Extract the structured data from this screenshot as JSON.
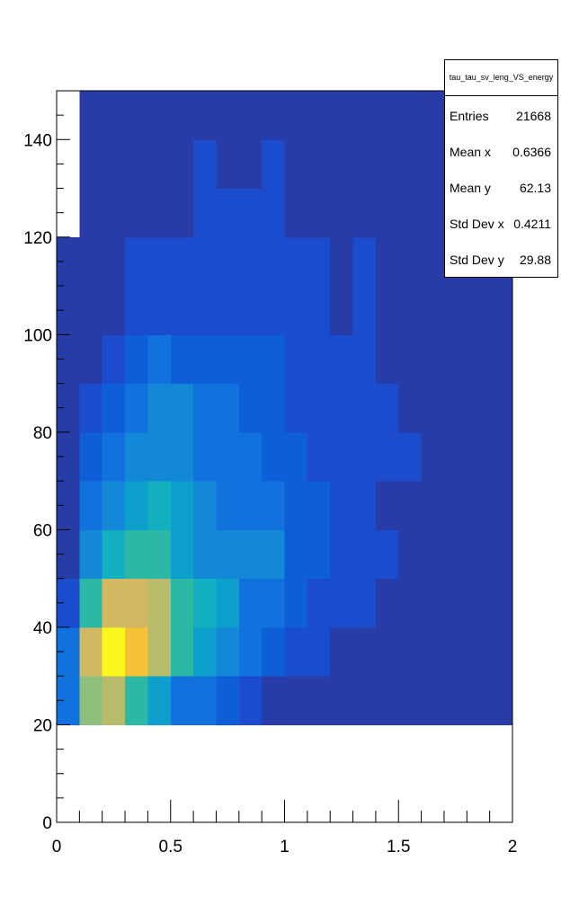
{
  "chart_data": {
    "type": "heatmap",
    "title": "",
    "xlabel": "",
    "ylabel": "",
    "xlim": [
      0,
      2
    ],
    "ylim": [
      0,
      150
    ],
    "x_bin_width": 0.1,
    "y_bin_width": 10,
    "x_ticks": [
      "0",
      "0.5",
      "1",
      "1.5",
      "2"
    ],
    "y_ticks": [
      "0",
      "20",
      "40",
      "60",
      "80",
      "100",
      "120",
      "140"
    ],
    "palette": [
      "#283ca8",
      "#1a4ccd",
      "#0e5ed8",
      "#1172de",
      "#1288d6",
      "#0ea0cc",
      "#12b0c0",
      "#2cb8a4",
      "#8ebf7c",
      "#b8bb6c",
      "#d2b862",
      "#f5c136",
      "#faf81a"
    ],
    "cells": [
      {
        "x": 0.0,
        "y": 20,
        "level": 3
      },
      {
        "x": 0.1,
        "y": 20,
        "level": 8
      },
      {
        "x": 0.2,
        "y": 20,
        "level": 9
      },
      {
        "x": 0.3,
        "y": 20,
        "level": 7
      },
      {
        "x": 0.4,
        "y": 20,
        "level": 5
      },
      {
        "x": 0.5,
        "y": 20,
        "level": 3
      },
      {
        "x": 0.6,
        "y": 20,
        "level": 3
      },
      {
        "x": 0.7,
        "y": 20,
        "level": 2
      },
      {
        "x": 0.8,
        "y": 20,
        "level": 1
      },
      {
        "x": 0.9,
        "y": 20,
        "level": 0
      },
      {
        "x": 1.0,
        "y": 20,
        "level": 0
      },
      {
        "x": 1.1,
        "y": 20,
        "level": 0
      },
      {
        "x": 1.2,
        "y": 20,
        "level": 0
      },
      {
        "x": 1.3,
        "y": 20,
        "level": 0
      },
      {
        "x": 1.4,
        "y": 20,
        "level": 0
      },
      {
        "x": 1.5,
        "y": 20,
        "level": 0
      },
      {
        "x": 1.6,
        "y": 20,
        "level": 0
      },
      {
        "x": 1.7,
        "y": 20,
        "level": 0
      },
      {
        "x": 1.8,
        "y": 20,
        "level": 0
      },
      {
        "x": 1.9,
        "y": 20,
        "level": 0
      },
      {
        "x": 0.0,
        "y": 30,
        "level": 3
      },
      {
        "x": 0.1,
        "y": 30,
        "level": 10
      },
      {
        "x": 0.2,
        "y": 30,
        "level": 12
      },
      {
        "x": 0.3,
        "y": 30,
        "level": 11
      },
      {
        "x": 0.4,
        "y": 30,
        "level": 9
      },
      {
        "x": 0.5,
        "y": 30,
        "level": 7
      },
      {
        "x": 0.6,
        "y": 30,
        "level": 5
      },
      {
        "x": 0.7,
        "y": 30,
        "level": 4
      },
      {
        "x": 0.8,
        "y": 30,
        "level": 3
      },
      {
        "x": 0.9,
        "y": 30,
        "level": 2
      },
      {
        "x": 1.0,
        "y": 30,
        "level": 1
      },
      {
        "x": 1.1,
        "y": 30,
        "level": 1
      },
      {
        "x": 1.2,
        "y": 30,
        "level": 0
      },
      {
        "x": 1.3,
        "y": 30,
        "level": 0
      },
      {
        "x": 1.4,
        "y": 30,
        "level": 0
      },
      {
        "x": 1.5,
        "y": 30,
        "level": 0
      },
      {
        "x": 1.6,
        "y": 30,
        "level": 0
      },
      {
        "x": 1.7,
        "y": 30,
        "level": 0
      },
      {
        "x": 1.8,
        "y": 30,
        "level": 0
      },
      {
        "x": 1.9,
        "y": 30,
        "level": 0
      },
      {
        "x": 0.0,
        "y": 40,
        "level": 1
      },
      {
        "x": 0.1,
        "y": 40,
        "level": 7
      },
      {
        "x": 0.2,
        "y": 40,
        "level": 10
      },
      {
        "x": 0.3,
        "y": 40,
        "level": 10
      },
      {
        "x": 0.4,
        "y": 40,
        "level": 9
      },
      {
        "x": 0.5,
        "y": 40,
        "level": 7
      },
      {
        "x": 0.6,
        "y": 40,
        "level": 6
      },
      {
        "x": 0.7,
        "y": 40,
        "level": 5
      },
      {
        "x": 0.8,
        "y": 40,
        "level": 3
      },
      {
        "x": 0.9,
        "y": 40,
        "level": 3
      },
      {
        "x": 1.0,
        "y": 40,
        "level": 2
      },
      {
        "x": 1.1,
        "y": 40,
        "level": 1
      },
      {
        "x": 1.2,
        "y": 40,
        "level": 1
      },
      {
        "x": 1.3,
        "y": 40,
        "level": 1
      },
      {
        "x": 1.4,
        "y": 40,
        "level": 0
      },
      {
        "x": 1.5,
        "y": 40,
        "level": 0
      },
      {
        "x": 1.6,
        "y": 40,
        "level": 0
      },
      {
        "x": 1.7,
        "y": 40,
        "level": 0
      },
      {
        "x": 1.8,
        "y": 40,
        "level": 0
      },
      {
        "x": 1.9,
        "y": 40,
        "level": 0
      },
      {
        "x": 0.0,
        "y": 50,
        "level": 0
      },
      {
        "x": 0.1,
        "y": 50,
        "level": 4
      },
      {
        "x": 0.2,
        "y": 50,
        "level": 6
      },
      {
        "x": 0.3,
        "y": 50,
        "level": 7
      },
      {
        "x": 0.4,
        "y": 50,
        "level": 7
      },
      {
        "x": 0.5,
        "y": 50,
        "level": 5
      },
      {
        "x": 0.6,
        "y": 50,
        "level": 4
      },
      {
        "x": 0.7,
        "y": 50,
        "level": 4
      },
      {
        "x": 0.8,
        "y": 50,
        "level": 4
      },
      {
        "x": 0.9,
        "y": 50,
        "level": 4
      },
      {
        "x": 1.0,
        "y": 50,
        "level": 2
      },
      {
        "x": 1.1,
        "y": 50,
        "level": 2
      },
      {
        "x": 1.2,
        "y": 50,
        "level": 1
      },
      {
        "x": 1.3,
        "y": 50,
        "level": 1
      },
      {
        "x": 1.4,
        "y": 50,
        "level": 1
      },
      {
        "x": 1.5,
        "y": 50,
        "level": 0
      },
      {
        "x": 1.6,
        "y": 50,
        "level": 0
      },
      {
        "x": 1.7,
        "y": 50,
        "level": 0
      },
      {
        "x": 1.8,
        "y": 50,
        "level": 0
      },
      {
        "x": 1.9,
        "y": 50,
        "level": 0
      },
      {
        "x": 0.0,
        "y": 60,
        "level": 0
      },
      {
        "x": 0.1,
        "y": 60,
        "level": 3
      },
      {
        "x": 0.2,
        "y": 60,
        "level": 4
      },
      {
        "x": 0.3,
        "y": 60,
        "level": 5
      },
      {
        "x": 0.4,
        "y": 60,
        "level": 6
      },
      {
        "x": 0.5,
        "y": 60,
        "level": 5
      },
      {
        "x": 0.6,
        "y": 60,
        "level": 4
      },
      {
        "x": 0.7,
        "y": 60,
        "level": 3
      },
      {
        "x": 0.8,
        "y": 60,
        "level": 3
      },
      {
        "x": 0.9,
        "y": 60,
        "level": 3
      },
      {
        "x": 1.0,
        "y": 60,
        "level": 2
      },
      {
        "x": 1.1,
        "y": 60,
        "level": 2
      },
      {
        "x": 1.2,
        "y": 60,
        "level": 1
      },
      {
        "x": 1.3,
        "y": 60,
        "level": 1
      },
      {
        "x": 1.4,
        "y": 60,
        "level": 0
      },
      {
        "x": 1.5,
        "y": 60,
        "level": 0
      },
      {
        "x": 1.6,
        "y": 60,
        "level": 0
      },
      {
        "x": 1.7,
        "y": 60,
        "level": 0
      },
      {
        "x": 1.8,
        "y": 60,
        "level": 0
      },
      {
        "x": 1.9,
        "y": 60,
        "level": 0
      },
      {
        "x": 0.0,
        "y": 70,
        "level": 0
      },
      {
        "x": 0.1,
        "y": 70,
        "level": 2
      },
      {
        "x": 0.2,
        "y": 70,
        "level": 3
      },
      {
        "x": 0.3,
        "y": 70,
        "level": 4
      },
      {
        "x": 0.4,
        "y": 70,
        "level": 4
      },
      {
        "x": 0.5,
        "y": 70,
        "level": 4
      },
      {
        "x": 0.6,
        "y": 70,
        "level": 3
      },
      {
        "x": 0.7,
        "y": 70,
        "level": 3
      },
      {
        "x": 0.8,
        "y": 70,
        "level": 3
      },
      {
        "x": 0.9,
        "y": 70,
        "level": 2
      },
      {
        "x": 1.0,
        "y": 70,
        "level": 2
      },
      {
        "x": 1.1,
        "y": 70,
        "level": 1
      },
      {
        "x": 1.2,
        "y": 70,
        "level": 1
      },
      {
        "x": 1.3,
        "y": 70,
        "level": 1
      },
      {
        "x": 1.4,
        "y": 70,
        "level": 1
      },
      {
        "x": 1.5,
        "y": 70,
        "level": 1
      },
      {
        "x": 1.6,
        "y": 70,
        "level": 0
      },
      {
        "x": 1.7,
        "y": 70,
        "level": 0
      },
      {
        "x": 1.8,
        "y": 70,
        "level": 0
      },
      {
        "x": 1.9,
        "y": 70,
        "level": 0
      },
      {
        "x": 0.0,
        "y": 80,
        "level": 0
      },
      {
        "x": 0.1,
        "y": 80,
        "level": 1
      },
      {
        "x": 0.2,
        "y": 80,
        "level": 2
      },
      {
        "x": 0.3,
        "y": 80,
        "level": 3
      },
      {
        "x": 0.4,
        "y": 80,
        "level": 4
      },
      {
        "x": 0.5,
        "y": 80,
        "level": 4
      },
      {
        "x": 0.6,
        "y": 80,
        "level": 3
      },
      {
        "x": 0.7,
        "y": 80,
        "level": 3
      },
      {
        "x": 0.8,
        "y": 80,
        "level": 2
      },
      {
        "x": 0.9,
        "y": 80,
        "level": 2
      },
      {
        "x": 1.0,
        "y": 80,
        "level": 1
      },
      {
        "x": 1.1,
        "y": 80,
        "level": 1
      },
      {
        "x": 1.2,
        "y": 80,
        "level": 1
      },
      {
        "x": 1.3,
        "y": 80,
        "level": 1
      },
      {
        "x": 1.4,
        "y": 80,
        "level": 1
      },
      {
        "x": 1.5,
        "y": 80,
        "level": 0
      },
      {
        "x": 1.6,
        "y": 80,
        "level": 0
      },
      {
        "x": 1.7,
        "y": 80,
        "level": 0
      },
      {
        "x": 1.8,
        "y": 80,
        "level": 0
      },
      {
        "x": 1.9,
        "y": 80,
        "level": 0
      },
      {
        "x": 0.0,
        "y": 90,
        "level": 0
      },
      {
        "x": 0.1,
        "y": 90,
        "level": 0
      },
      {
        "x": 0.2,
        "y": 90,
        "level": 1
      },
      {
        "x": 0.3,
        "y": 90,
        "level": 2
      },
      {
        "x": 0.4,
        "y": 90,
        "level": 3
      },
      {
        "x": 0.5,
        "y": 90,
        "level": 2
      },
      {
        "x": 0.6,
        "y": 90,
        "level": 2
      },
      {
        "x": 0.7,
        "y": 90,
        "level": 2
      },
      {
        "x": 0.8,
        "y": 90,
        "level": 2
      },
      {
        "x": 0.9,
        "y": 90,
        "level": 2
      },
      {
        "x": 1.0,
        "y": 90,
        "level": 1
      },
      {
        "x": 1.1,
        "y": 90,
        "level": 1
      },
      {
        "x": 1.2,
        "y": 90,
        "level": 1
      },
      {
        "x": 1.3,
        "y": 90,
        "level": 1
      },
      {
        "x": 1.4,
        "y": 90,
        "level": 0
      },
      {
        "x": 1.5,
        "y": 90,
        "level": 0
      },
      {
        "x": 1.6,
        "y": 90,
        "level": 0
      },
      {
        "x": 1.7,
        "y": 90,
        "level": 0
      },
      {
        "x": 1.8,
        "y": 90,
        "level": 0
      },
      {
        "x": 1.9,
        "y": 90,
        "level": 0
      },
      {
        "x": 0.0,
        "y": 100,
        "level": 0
      },
      {
        "x": 0.1,
        "y": 100,
        "level": 0
      },
      {
        "x": 0.2,
        "y": 100,
        "level": 0
      },
      {
        "x": 0.3,
        "y": 100,
        "level": 1
      },
      {
        "x": 0.4,
        "y": 100,
        "level": 1
      },
      {
        "x": 0.5,
        "y": 100,
        "level": 1
      },
      {
        "x": 0.6,
        "y": 100,
        "level": 1
      },
      {
        "x": 0.7,
        "y": 100,
        "level": 1
      },
      {
        "x": 0.8,
        "y": 100,
        "level": 1
      },
      {
        "x": 0.9,
        "y": 100,
        "level": 1
      },
      {
        "x": 1.0,
        "y": 100,
        "level": 1
      },
      {
        "x": 1.1,
        "y": 100,
        "level": 1
      },
      {
        "x": 1.2,
        "y": 100,
        "level": 0
      },
      {
        "x": 1.3,
        "y": 100,
        "level": 1
      },
      {
        "x": 1.4,
        "y": 100,
        "level": 0
      },
      {
        "x": 1.5,
        "y": 100,
        "level": 0
      },
      {
        "x": 1.6,
        "y": 100,
        "level": 0
      },
      {
        "x": 1.7,
        "y": 100,
        "level": 0
      },
      {
        "x": 1.8,
        "y": 100,
        "level": 0
      },
      {
        "x": 1.9,
        "y": 100,
        "level": 0
      },
      {
        "x": 0.0,
        "y": 110,
        "level": 0
      },
      {
        "x": 0.1,
        "y": 110,
        "level": 0
      },
      {
        "x": 0.2,
        "y": 110,
        "level": 0
      },
      {
        "x": 0.3,
        "y": 110,
        "level": 1
      },
      {
        "x": 0.4,
        "y": 110,
        "level": 1
      },
      {
        "x": 0.5,
        "y": 110,
        "level": 1
      },
      {
        "x": 0.6,
        "y": 110,
        "level": 1
      },
      {
        "x": 0.7,
        "y": 110,
        "level": 1
      },
      {
        "x": 0.8,
        "y": 110,
        "level": 1
      },
      {
        "x": 0.9,
        "y": 110,
        "level": 1
      },
      {
        "x": 1.0,
        "y": 110,
        "level": 1
      },
      {
        "x": 1.1,
        "y": 110,
        "level": 1
      },
      {
        "x": 1.2,
        "y": 110,
        "level": 0
      },
      {
        "x": 1.3,
        "y": 110,
        "level": 1
      },
      {
        "x": 1.4,
        "y": 110,
        "level": 0
      },
      {
        "x": 1.5,
        "y": 110,
        "level": 0
      },
      {
        "x": 1.6,
        "y": 110,
        "level": 0
      },
      {
        "x": 1.7,
        "y": 110,
        "level": 0
      },
      {
        "x": 1.8,
        "y": 110,
        "level": 0
      },
      {
        "x": 1.9,
        "y": 110,
        "level": 0
      },
      {
        "x": 0.1,
        "y": 120,
        "level": 0
      },
      {
        "x": 0.2,
        "y": 120,
        "level": 0
      },
      {
        "x": 0.3,
        "y": 120,
        "level": 0
      },
      {
        "x": 0.4,
        "y": 120,
        "level": 0
      },
      {
        "x": 0.5,
        "y": 120,
        "level": 0
      },
      {
        "x": 0.6,
        "y": 120,
        "level": 1
      },
      {
        "x": 0.7,
        "y": 120,
        "level": 1
      },
      {
        "x": 0.8,
        "y": 120,
        "level": 1
      },
      {
        "x": 0.9,
        "y": 120,
        "level": 1
      },
      {
        "x": 1.0,
        "y": 120,
        "level": 0
      },
      {
        "x": 1.1,
        "y": 120,
        "level": 0
      },
      {
        "x": 1.2,
        "y": 120,
        "level": 0
      },
      {
        "x": 1.3,
        "y": 120,
        "level": 0
      },
      {
        "x": 1.4,
        "y": 120,
        "level": 0
      },
      {
        "x": 1.5,
        "y": 120,
        "level": 0
      },
      {
        "x": 1.6,
        "y": 120,
        "level": 0
      },
      {
        "x": 1.7,
        "y": 120,
        "level": 0
      },
      {
        "x": 1.8,
        "y": 120,
        "level": 0
      },
      {
        "x": 1.9,
        "y": 120,
        "level": 0
      },
      {
        "x": 0.1,
        "y": 130,
        "level": 0
      },
      {
        "x": 0.2,
        "y": 130,
        "level": 0
      },
      {
        "x": 0.3,
        "y": 130,
        "level": 0
      },
      {
        "x": 0.4,
        "y": 130,
        "level": 0
      },
      {
        "x": 0.5,
        "y": 130,
        "level": 0
      },
      {
        "x": 0.6,
        "y": 130,
        "level": 1
      },
      {
        "x": 0.7,
        "y": 130,
        "level": 0
      },
      {
        "x": 0.8,
        "y": 130,
        "level": 0
      },
      {
        "x": 0.9,
        "y": 130,
        "level": 1
      },
      {
        "x": 1.0,
        "y": 130,
        "level": 0
      },
      {
        "x": 1.1,
        "y": 130,
        "level": 0
      },
      {
        "x": 1.2,
        "y": 130,
        "level": 0
      },
      {
        "x": 1.3,
        "y": 130,
        "level": 0
      },
      {
        "x": 1.4,
        "y": 130,
        "level": 0
      },
      {
        "x": 1.5,
        "y": 130,
        "level": 0
      },
      {
        "x": 1.6,
        "y": 130,
        "level": 0
      },
      {
        "x": 1.7,
        "y": 130,
        "level": 0
      },
      {
        "x": 1.8,
        "y": 130,
        "level": 0
      },
      {
        "x": 1.9,
        "y": 130,
        "level": 0
      },
      {
        "x": 0.1,
        "y": 140,
        "level": 0
      },
      {
        "x": 0.2,
        "y": 140,
        "level": 0
      },
      {
        "x": 0.3,
        "y": 140,
        "level": 0
      },
      {
        "x": 0.4,
        "y": 140,
        "level": 0
      },
      {
        "x": 0.5,
        "y": 140,
        "level": 0
      },
      {
        "x": 0.6,
        "y": 140,
        "level": 0
      },
      {
        "x": 0.7,
        "y": 140,
        "level": 0
      },
      {
        "x": 0.8,
        "y": 140,
        "level": 0
      },
      {
        "x": 0.9,
        "y": 140,
        "level": 0
      },
      {
        "x": 1.0,
        "y": 140,
        "level": 0
      },
      {
        "x": 1.1,
        "y": 140,
        "level": 0
      },
      {
        "x": 1.2,
        "y": 140,
        "level": 0
      },
      {
        "x": 1.3,
        "y": 140,
        "level": 0
      },
      {
        "x": 1.4,
        "y": 140,
        "level": 0
      },
      {
        "x": 1.5,
        "y": 140,
        "level": 0
      },
      {
        "x": 1.6,
        "y": 140,
        "level": 0
      },
      {
        "x": 1.7,
        "y": 140,
        "level": 0
      },
      {
        "x": 1.8,
        "y": 140,
        "level": 0
      },
      {
        "x": 1.9,
        "y": 140,
        "level": 0
      }
    ]
  },
  "stats_box": {
    "title": "tau_tau_sv_leng_VS_energy",
    "rows": [
      {
        "label": "Entries",
        "value": "21668"
      },
      {
        "label": "Mean x",
        "value": "0.6366"
      },
      {
        "label": "Mean y",
        "value": "62.13"
      },
      {
        "label": "Std Dev x",
        "value": "0.4211"
      },
      {
        "label": "Std Dev y",
        "value": "29.88"
      }
    ]
  }
}
